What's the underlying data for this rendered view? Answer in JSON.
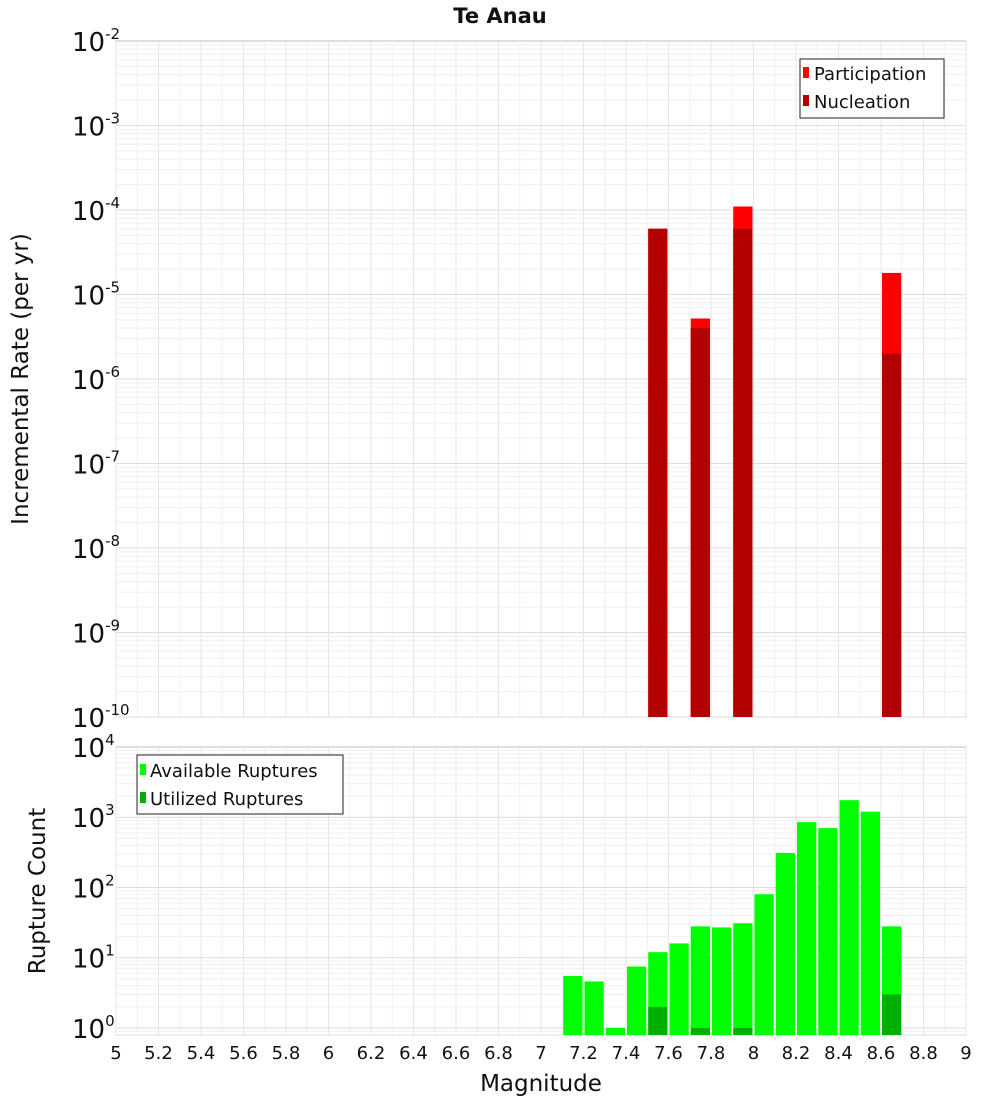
{
  "chart_data": [
    {
      "id": "top",
      "type": "bar",
      "title": "Te Anau",
      "ylabel": "Incremental Rate (per yr)",
      "xlim": [
        5,
        9
      ],
      "ylim_exp": [
        -10,
        -2
      ],
      "ytick_exponents": [
        -10,
        -9,
        -8,
        -7,
        -6,
        -5,
        -4,
        -3,
        -2
      ],
      "ytick_base": "10",
      "scale": "log",
      "grid": true,
      "legend_position": "top-right",
      "bin_width": 0.1,
      "series": [
        {
          "name": "Participation",
          "color": "#ff0000",
          "points": [
            {
              "x": 7.55,
              "y": 6e-05
            },
            {
              "x": 7.75,
              "y": 5.2e-06
            },
            {
              "x": 7.95,
              "y": 0.00011
            },
            {
              "x": 8.65,
              "y": 1.8e-05
            }
          ]
        },
        {
          "name": "Nucleation",
          "color": "#b30000",
          "points": [
            {
              "x": 7.55,
              "y": 6e-05
            },
            {
              "x": 7.75,
              "y": 4e-06
            },
            {
              "x": 7.95,
              "y": 6e-05
            },
            {
              "x": 8.65,
              "y": 2e-06
            }
          ]
        }
      ]
    },
    {
      "id": "bottom",
      "type": "bar",
      "xlabel": "Magnitude",
      "ylabel": "Rupture Count",
      "xlim": [
        5,
        9
      ],
      "xticks": [
        "5",
        "5.2",
        "5.4",
        "5.6",
        "5.8",
        "6",
        "6.2",
        "6.4",
        "6.6",
        "6.8",
        "7",
        "7.2",
        "7.4",
        "7.6",
        "7.8",
        "8",
        "8.2",
        "8.4",
        "8.6",
        "8.8",
        "9"
      ],
      "ylim_exp": [
        -0.1,
        4
      ],
      "ytick_exponents": [
        0,
        1,
        2,
        3,
        4
      ],
      "ytick_base": "10",
      "scale": "log",
      "grid": true,
      "legend_position": "top-left",
      "bin_width": 0.1,
      "series": [
        {
          "name": "Available Ruptures",
          "color": "#00ff00",
          "points": [
            {
              "x": 7.15,
              "y": 5.5
            },
            {
              "x": 7.25,
              "y": 4.6
            },
            {
              "x": 7.35,
              "y": 1
            },
            {
              "x": 7.45,
              "y": 7.5
            },
            {
              "x": 7.55,
              "y": 12
            },
            {
              "x": 7.65,
              "y": 16
            },
            {
              "x": 7.75,
              "y": 28
            },
            {
              "x": 7.85,
              "y": 27
            },
            {
              "x": 7.95,
              "y": 31
            },
            {
              "x": 8.05,
              "y": 80
            },
            {
              "x": 8.15,
              "y": 310
            },
            {
              "x": 8.25,
              "y": 850
            },
            {
              "x": 8.35,
              "y": 700
            },
            {
              "x": 8.45,
              "y": 1750
            },
            {
              "x": 8.55,
              "y": 1200
            },
            {
              "x": 8.65,
              "y": 28
            }
          ]
        },
        {
          "name": "Utilized Ruptures",
          "color": "#00b000",
          "points": [
            {
              "x": 7.55,
              "y": 2
            },
            {
              "x": 7.75,
              "y": 1
            },
            {
              "x": 7.95,
              "y": 1
            },
            {
              "x": 8.65,
              "y": 3
            }
          ]
        }
      ]
    }
  ]
}
